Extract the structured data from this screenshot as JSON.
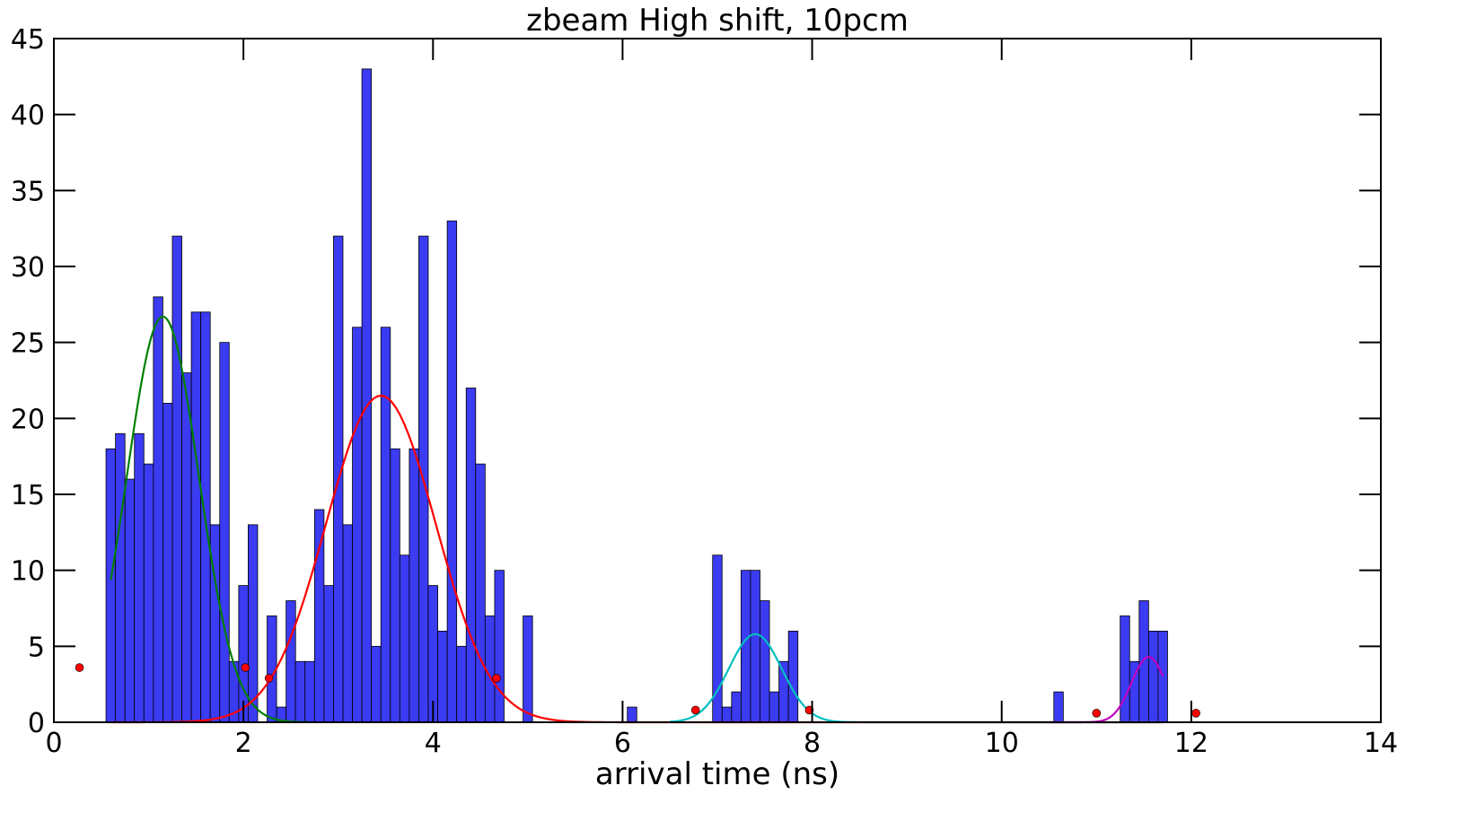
{
  "chart_data": {
    "type": "bar",
    "title": "zbeam High shift, 10pcm",
    "xlabel": "arrival time (ns)",
    "ylabel": "",
    "xlim": [
      0,
      14
    ],
    "ylim": [
      0,
      45
    ],
    "xticks": [
      0,
      2,
      4,
      6,
      8,
      10,
      12,
      14
    ],
    "yticks": [
      0,
      5,
      10,
      15,
      20,
      25,
      30,
      35,
      40,
      45
    ],
    "grid": false,
    "bin_width": 0.1,
    "histogram": {
      "bin_centers": [
        0.6,
        0.7,
        0.8,
        0.9,
        1.0,
        1.1,
        1.2,
        1.3,
        1.4,
        1.5,
        1.6,
        1.7,
        1.8,
        1.9,
        2.0,
        2.1,
        2.2,
        2.3,
        2.4,
        2.5,
        2.6,
        2.7,
        2.8,
        2.9,
        3.0,
        3.1,
        3.2,
        3.3,
        3.4,
        3.5,
        3.6,
        3.7,
        3.8,
        3.9,
        4.0,
        4.1,
        4.2,
        4.3,
        4.4,
        4.5,
        4.6,
        4.7,
        4.8,
        4.9,
        5.0,
        6.1,
        7.0,
        7.1,
        7.2,
        7.3,
        7.4,
        7.5,
        7.6,
        7.7,
        7.8,
        7.9,
        10.6,
        11.3,
        11.4,
        11.5,
        11.6,
        11.7
      ],
      "counts": [
        18,
        19,
        16,
        19,
        17,
        28,
        21,
        32,
        23,
        27,
        27,
        13,
        25,
        4,
        9,
        13,
        0,
        7,
        1,
        8,
        4,
        4,
        14,
        9,
        32,
        13,
        26,
        43,
        5,
        26,
        18,
        11,
        18,
        32,
        9,
        6,
        33,
        5,
        22,
        17,
        7,
        10,
        0,
        0,
        7,
        1,
        11,
        1,
        2,
        10,
        10,
        8,
        2,
        4,
        6,
        0,
        2,
        7,
        4,
        8,
        6,
        6
      ]
    },
    "series": [
      {
        "name": "",
        "color": "#008000",
        "mu": 1.15,
        "sigma": 0.38,
        "amplitude": 26.7,
        "x_range": [
          0.6,
          2.7
        ]
      },
      {
        "name": "",
        "color": "#ff0000",
        "mu": 3.45,
        "sigma": 0.58,
        "amplitude": 21.5,
        "x_range": [
          0.6,
          11.7
        ]
      },
      {
        "name": "",
        "color": "#00bfbf",
        "mu": 7.4,
        "sigma": 0.28,
        "amplitude": 5.8,
        "x_range": [
          6.5,
          11.7
        ]
      },
      {
        "name": "",
        "color": "#bf00bf",
        "mu": 11.55,
        "sigma": 0.18,
        "amplitude": 4.3,
        "x_range": [
          10.5,
          11.7
        ]
      }
    ],
    "points": {
      "color": "#ff0000",
      "x": [
        0.27,
        2.02,
        2.27,
        4.67,
        6.77,
        7.97,
        11.0,
        12.05
      ],
      "y": [
        3.6,
        3.6,
        2.9,
        2.9,
        0.8,
        0.8,
        0.6,
        0.6
      ]
    }
  }
}
